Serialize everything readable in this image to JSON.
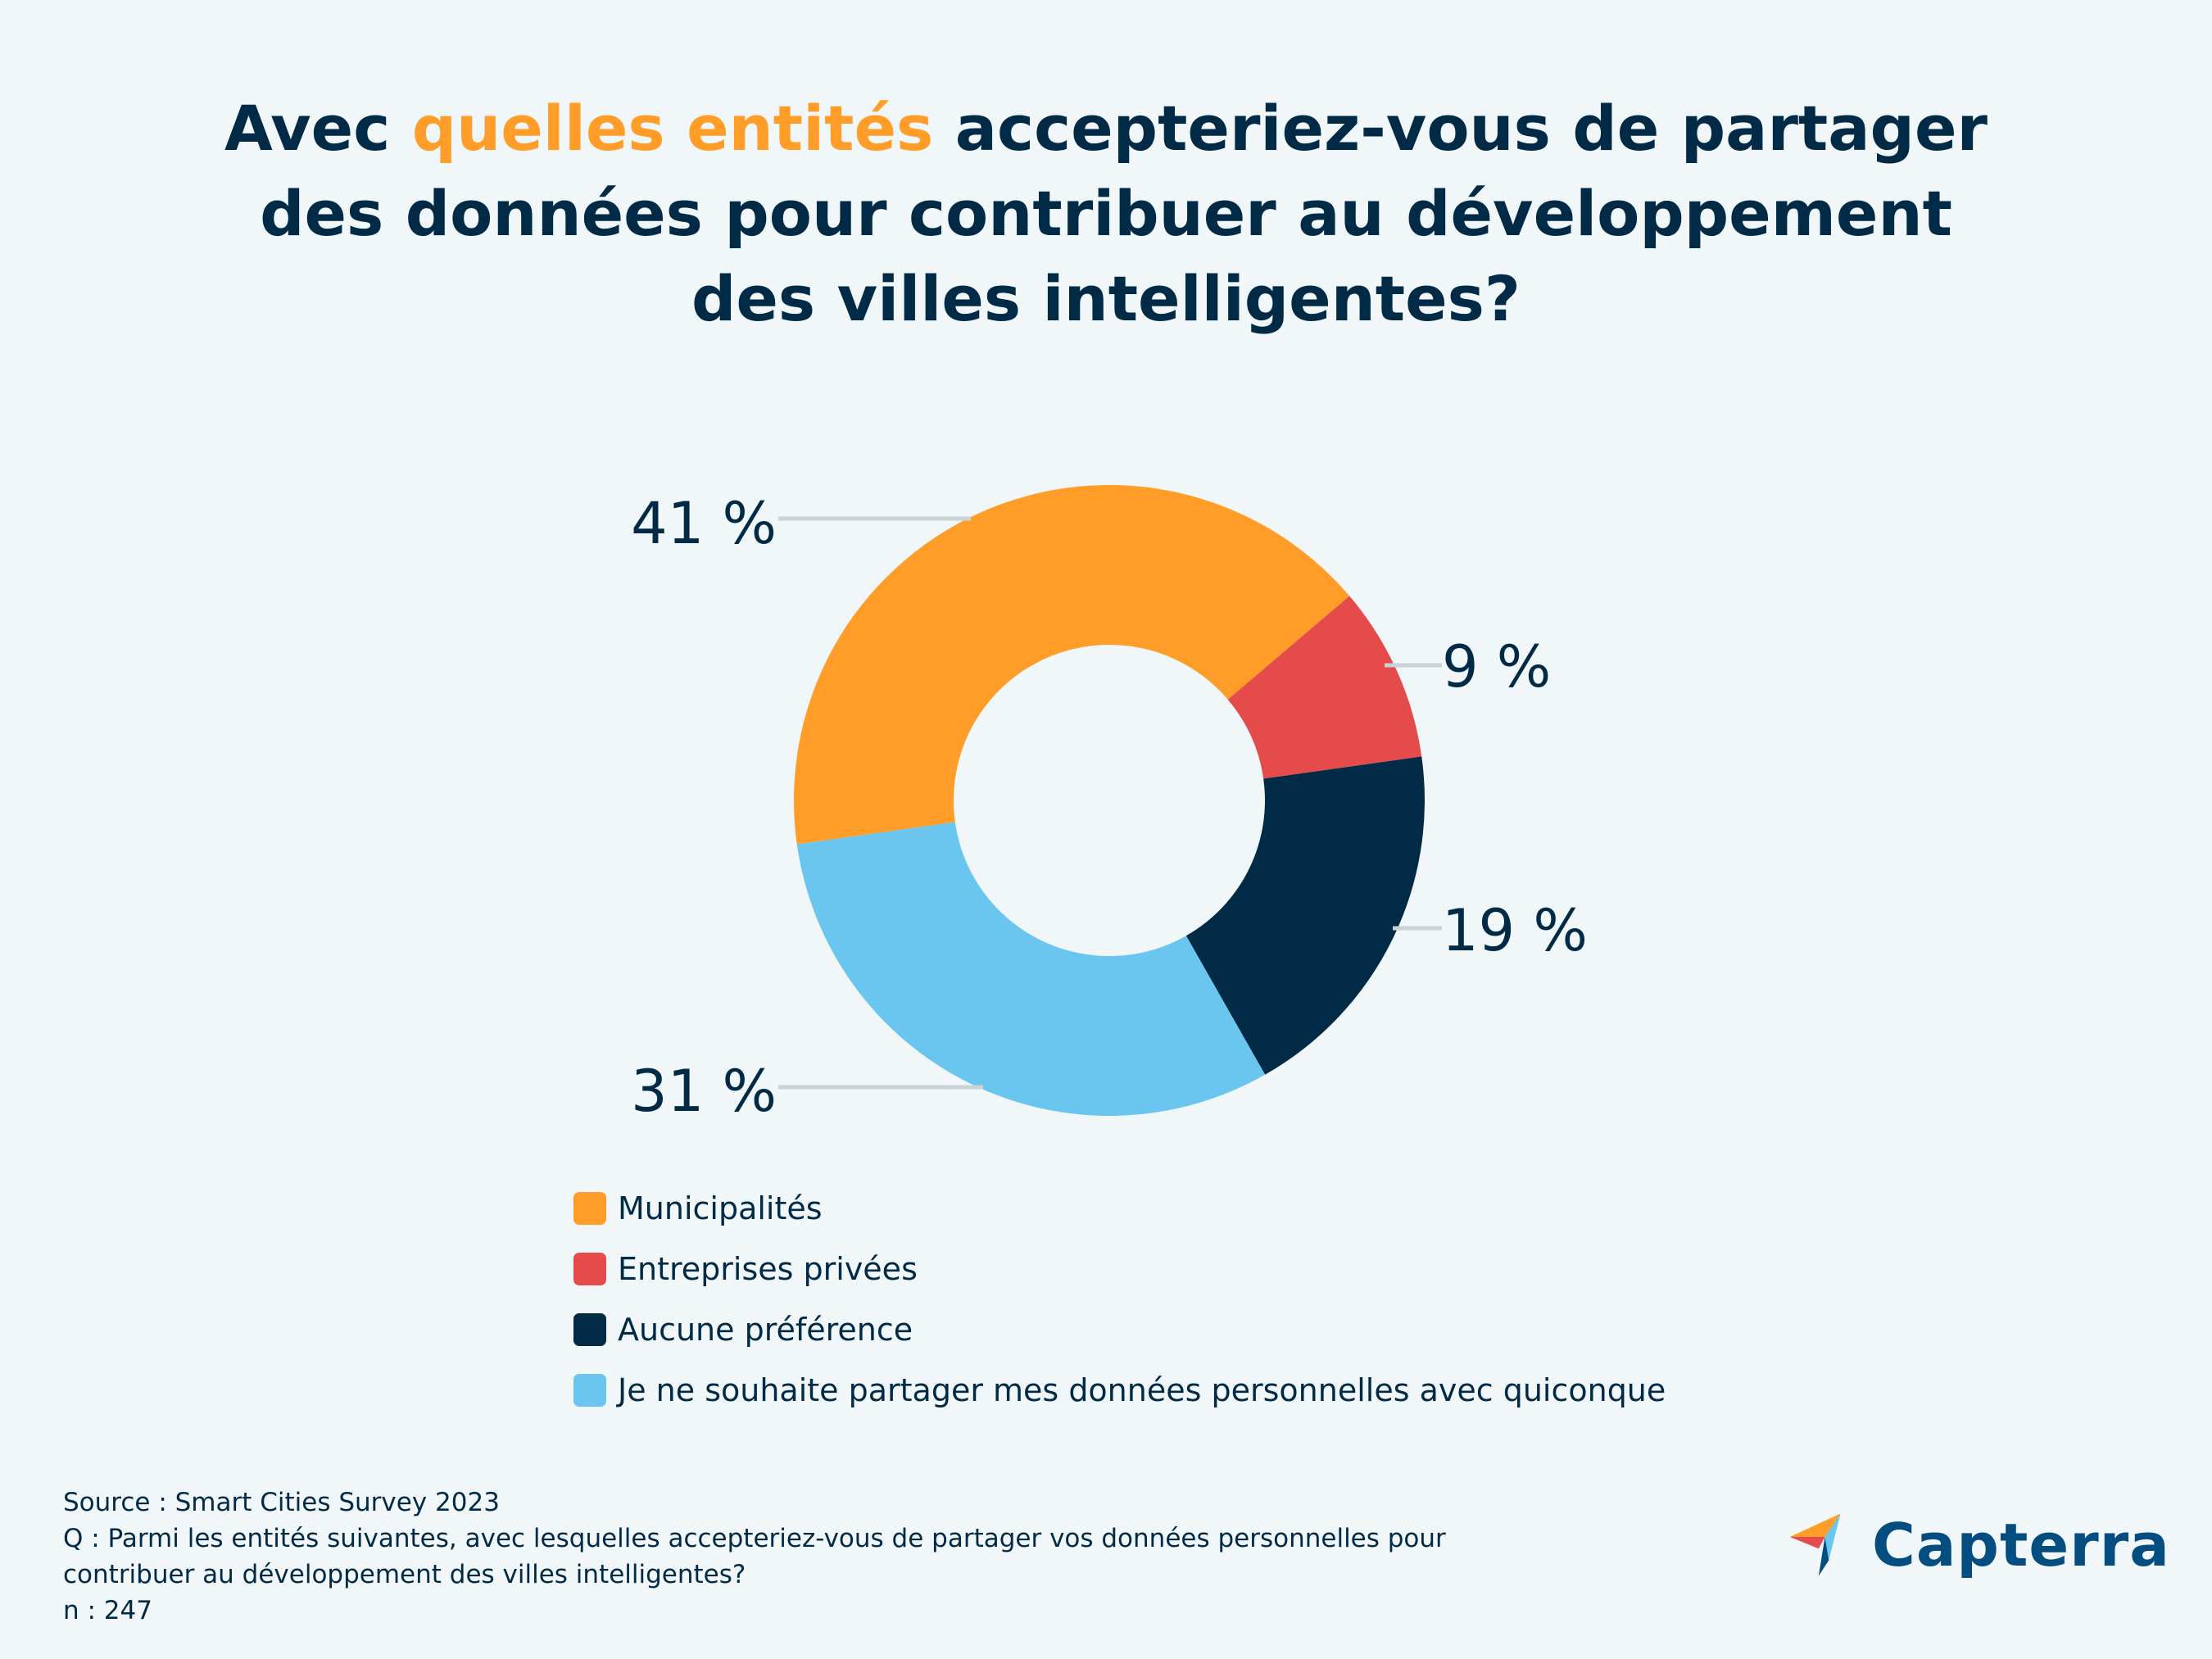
{
  "title": {
    "part1": "Avec ",
    "highlight": "quelles entités",
    "part2": " accepteriez-vous de partager des données pour contribuer au développement des villes intelligentes?"
  },
  "colors": {
    "orange": "#ff9d28",
    "red": "#e54b4b",
    "navy": "#002a45",
    "lightblue": "#6bc6ef",
    "brand": "#044d80"
  },
  "chart_data": {
    "type": "pie",
    "variant": "donut",
    "title": "Avec quelles entités accepteriez-vous de partager des données pour contribuer au développement des villes intelligentes?",
    "categories": [
      "Municipalités",
      "Entreprises privées",
      "Aucune préférence",
      "Je ne souhaite partager mes données personnelles avec quiconque"
    ],
    "values": [
      41,
      9,
      19,
      31
    ],
    "unit": "%",
    "labels": [
      "41 %",
      "9 %",
      "19 %",
      "31 %"
    ],
    "colors": [
      "#ff9d28",
      "#e54b4b",
      "#002a45",
      "#6bc6ef"
    ],
    "legend_position": "bottom"
  },
  "legend": [
    {
      "label": "Municipalités",
      "color": "#ff9d28"
    },
    {
      "label": "Entreprises privées",
      "color": "#e54b4b"
    },
    {
      "label": "Aucune préférence",
      "color": "#002a45"
    },
    {
      "label": "Je ne souhaite partager mes données personnelles avec quiconque",
      "color": "#6bc6ef"
    }
  ],
  "footer": {
    "source": "Source : Smart Cities Survey 2023",
    "question_line1": "Q : Parmi les entités suivantes, avec lesquelles accepteriez-vous de partager vos données personnelles pour",
    "question_line2": "contribuer au développement des villes intelligentes?",
    "sample": "n : 247"
  },
  "logo": {
    "name": "Capterra",
    "icon": "capterra-arrow-icon"
  }
}
